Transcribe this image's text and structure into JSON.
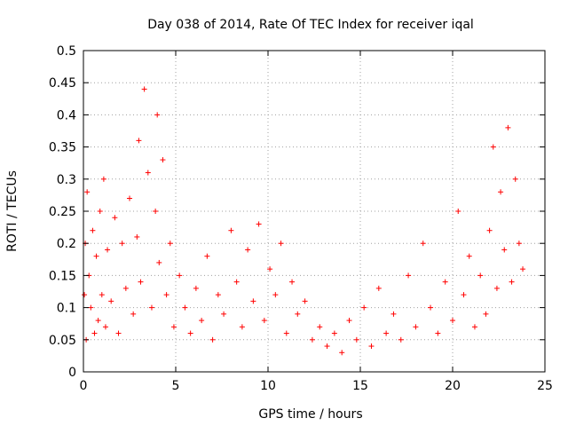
{
  "chart_data": {
    "type": "scatter",
    "title": "Day 038 of 2014, Rate Of TEC Index for receiver iqal",
    "xlabel": "GPS time / hours",
    "ylabel": "ROTI / TECUs",
    "xlim": [
      0,
      25
    ],
    "ylim": [
      0,
      0.5
    ],
    "xticks": [
      0,
      5,
      10,
      15,
      20,
      25
    ],
    "xtick_labels": [
      "0",
      "5",
      "10",
      "15",
      "20",
      "25"
    ],
    "yticks": [
      0,
      0.05,
      0.1,
      0.15,
      0.2,
      0.25,
      0.3,
      0.35,
      0.4,
      0.45,
      0.5
    ],
    "ytick_labels": [
      "0",
      "0.05",
      "0.1",
      "0.15",
      "0.2",
      "0.25",
      "0.3",
      "0.35",
      "0.4",
      "0.45",
      "0.5"
    ],
    "grid": true,
    "marker": "+",
    "color": "#ff0000",
    "series": [
      {
        "x": [
          0.05,
          0.1,
          0.15,
          0.2,
          0.3,
          0.4,
          0.5,
          0.6,
          0.7,
          0.8,
          0.9,
          1.0,
          1.1,
          1.2,
          1.3,
          1.5,
          1.7,
          1.9,
          2.1,
          2.3,
          2.5,
          2.7,
          2.9,
          3.0,
          3.1,
          3.3,
          3.5,
          3.7,
          3.9,
          4.0,
          4.1,
          4.3,
          4.5,
          4.7,
          4.9,
          5.2,
          5.5,
          5.8,
          6.1,
          6.4,
          6.7,
          7.0,
          7.3,
          7.6,
          8.0,
          8.3,
          8.6,
          8.9,
          9.2,
          9.5,
          9.8,
          10.1,
          10.4,
          10.7,
          11.0,
          11.3,
          11.6,
          12.0,
          12.4,
          12.8,
          13.2,
          13.6,
          14.0,
          14.4,
          14.8,
          15.2,
          15.6,
          16.0,
          16.4,
          16.8,
          17.2,
          17.6,
          18.0,
          18.4,
          18.8,
          19.2,
          19.6,
          20.0,
          20.3,
          20.6,
          20.9,
          21.2,
          21.5,
          21.8,
          22.0,
          22.2,
          22.4,
          22.6,
          22.8,
          23.0,
          23.2,
          23.4,
          23.6,
          23.8
        ],
        "y": [
          0.12,
          0.2,
          0.05,
          0.28,
          0.15,
          0.1,
          0.22,
          0.06,
          0.18,
          0.08,
          0.25,
          0.12,
          0.3,
          0.07,
          0.19,
          0.11,
          0.24,
          0.06,
          0.2,
          0.13,
          0.27,
          0.09,
          0.21,
          0.36,
          0.14,
          0.44,
          0.31,
          0.1,
          0.25,
          0.4,
          0.17,
          0.33,
          0.12,
          0.2,
          0.07,
          0.15,
          0.1,
          0.06,
          0.13,
          0.08,
          0.18,
          0.05,
          0.12,
          0.09,
          0.22,
          0.14,
          0.07,
          0.19,
          0.11,
          0.23,
          0.08,
          0.16,
          0.12,
          0.2,
          0.06,
          0.14,
          0.09,
          0.11,
          0.05,
          0.07,
          0.04,
          0.06,
          0.03,
          0.08,
          0.05,
          0.1,
          0.04,
          0.13,
          0.06,
          0.09,
          0.05,
          0.15,
          0.07,
          0.2,
          0.1,
          0.06,
          0.14,
          0.08,
          0.25,
          0.12,
          0.18,
          0.07,
          0.15,
          0.09,
          0.22,
          0.35,
          0.13,
          0.28,
          0.19,
          0.38,
          0.14,
          0.3,
          0.2,
          0.16
        ]
      }
    ]
  }
}
